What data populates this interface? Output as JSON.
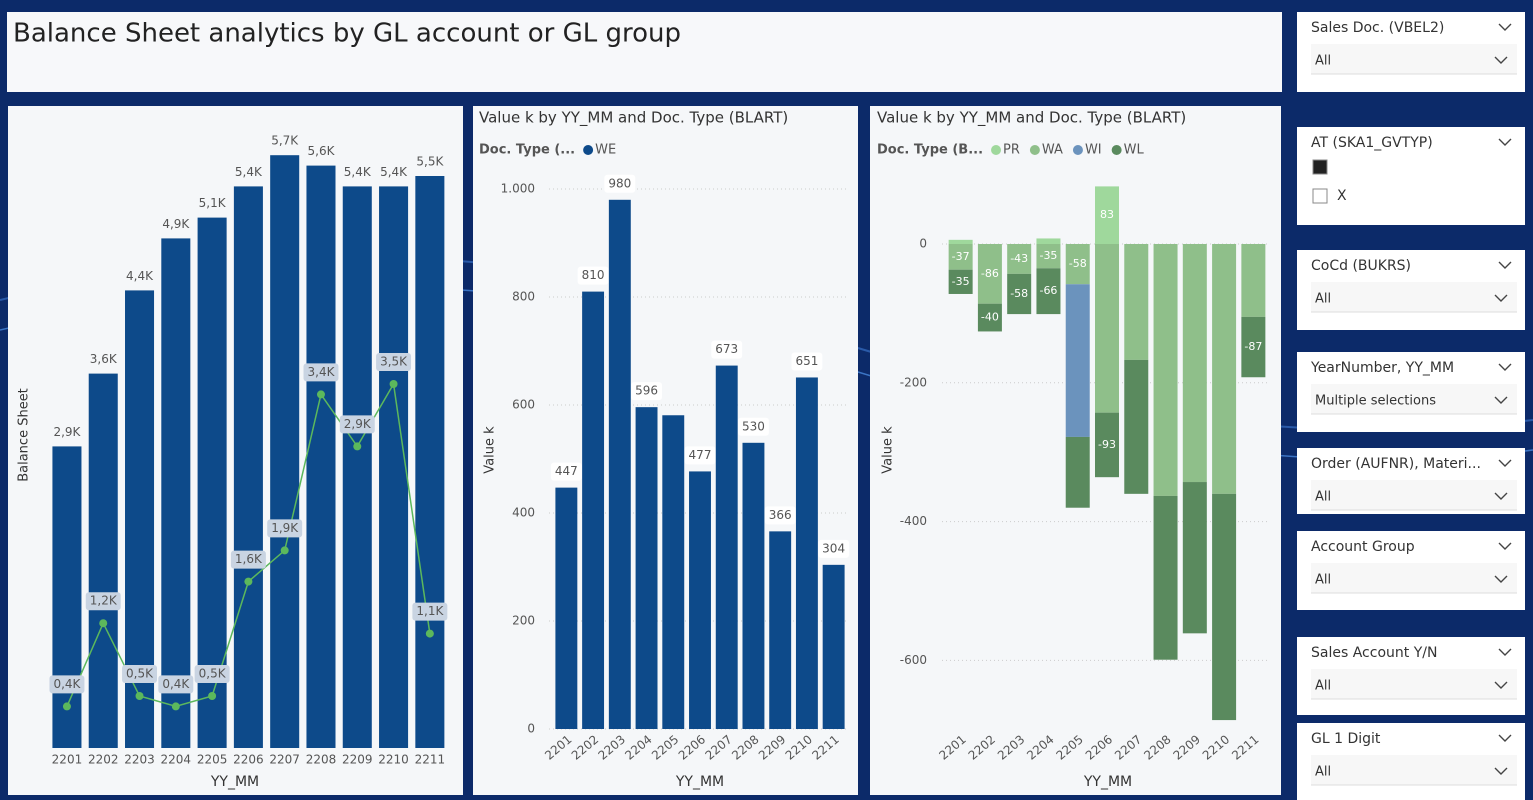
{
  "header": {
    "title": "Balance Sheet analytics by GL account or GL group"
  },
  "chart_data": [
    {
      "type": "combo",
      "y_label": "Balance Sheet",
      "x_label": "YY_MM",
      "ylim": [
        0,
        6
      ],
      "categories": [
        "2201",
        "2202",
        "2203",
        "2204",
        "2205",
        "2206",
        "2207",
        "2208",
        "2209",
        "2210",
        "2211"
      ],
      "series": [
        {
          "type": "bar",
          "color": "#0d4a8a",
          "values": [
            2.9,
            3.6,
            4.4,
            4.9,
            5.1,
            5.4,
            5.7,
            5.6,
            5.4,
            5.4,
            5.5
          ],
          "value_labels": [
            "2,9K",
            "3,6K",
            "4,4K",
            "4,9K",
            "5,1K",
            "5,4K",
            "5,7K",
            "5,6K",
            "5,4K",
            "5,4K",
            "5,5K"
          ]
        },
        {
          "type": "line",
          "color": "#5cb85c",
          "values": [
            0.4,
            1.2,
            0.5,
            0.4,
            0.5,
            1.6,
            1.9,
            3.4,
            2.9,
            3.5,
            1.1
          ],
          "value_labels": [
            "0,4K",
            "1,2K",
            "0,5K",
            "0,4K",
            "0,5K",
            "1,6K",
            "1,9K",
            "3,4K",
            "2,9K",
            "3,5K",
            "1,1K"
          ]
        }
      ]
    },
    {
      "type": "bar",
      "title": "Value k by YY_MM and Doc. Type (BLART)",
      "legend_title": "Doc. Type (...",
      "y_label": "Value k",
      "x_label": "YY_MM",
      "ylim": [
        0,
        1050
      ],
      "yticks": [
        0,
        200,
        400,
        600,
        800,
        {
          "value": 1000,
          "label": "1.000"
        }
      ],
      "grid": true,
      "categories": [
        "2201",
        "2202",
        "2203",
        "2204",
        "2205",
        "2206",
        "2207",
        "2208",
        "2209",
        "2210",
        "2211"
      ],
      "series": [
        {
          "name": "WE",
          "color": "#0d4a8a",
          "values": [
            447,
            810,
            980,
            596,
            581,
            477,
            673,
            530,
            366,
            651,
            304
          ],
          "value_labels": [
            "447",
            "810",
            "980",
            "596",
            null,
            "477",
            "673",
            "530",
            "366",
            "651",
            "304"
          ]
        }
      ]
    },
    {
      "type": "bar",
      "stacked": true,
      "title": "Value k by YY_MM and Doc. Type (BLART)",
      "legend_title": "Doc. Type (B...",
      "y_label": "Value k",
      "x_label": "YY_MM",
      "ylim": [
        -700,
        100
      ],
      "yticks": [
        0,
        -200,
        -400,
        -600
      ],
      "grid": true,
      "categories": [
        "2201",
        "2202",
        "2203",
        "2204",
        "2205",
        "2206",
        "2207",
        "2208",
        "2209",
        "2210",
        "2211"
      ],
      "series": [
        {
          "name": "PR",
          "color": "#9fd89c",
          "values": [
            6,
            null,
            null,
            8,
            null,
            83,
            null,
            null,
            null,
            null,
            null
          ],
          "value_labels": [
            null,
            null,
            null,
            null,
            null,
            "83",
            null,
            null,
            null,
            null,
            null
          ]
        },
        {
          "name": "WA",
          "color": "#8fbf8a",
          "values": [
            -37,
            -86,
            -43,
            -35,
            -58,
            -243,
            -167,
            -363,
            -343,
            -360,
            -105
          ],
          "value_labels": [
            "-37",
            "-86",
            "-43",
            "-35",
            "-58",
            null,
            null,
            null,
            null,
            null,
            null
          ]
        },
        {
          "name": "WI",
          "color": "#6b93bd",
          "values": [
            null,
            null,
            null,
            null,
            -220,
            null,
            null,
            null,
            null,
            null,
            null
          ],
          "value_labels": [
            null,
            null,
            null,
            null,
            null,
            null,
            null,
            null,
            null,
            null,
            null
          ]
        },
        {
          "name": "WL",
          "color": "#5a8a5e",
          "values": [
            -35,
            -40,
            -58,
            -66,
            -102,
            -93,
            -193,
            -236,
            -218,
            -326,
            -87
          ],
          "value_labels": [
            "-35",
            "-40",
            "-58",
            "-66",
            null,
            "-93",
            null,
            null,
            null,
            null,
            "-87"
          ]
        }
      ]
    }
  ],
  "slicers": [
    {
      "title": "Sales Doc. (VBEL2)",
      "value": "All"
    },
    {
      "title": "AT (SKA1_GVTYP)",
      "options": [
        {
          "checked": true
        },
        {
          "label": "X",
          "checked": false
        }
      ]
    },
    {
      "title": "CoCd (BUKRS)",
      "value": "All"
    },
    {
      "title": "YearNumber, YY_MM",
      "value": "Multiple selections"
    },
    {
      "title": "Order (AUFNR), Materi...",
      "value": "All"
    },
    {
      "title": "Account Group",
      "value": "All"
    },
    {
      "title": "Sales Account Y/N",
      "value": "All"
    },
    {
      "title": "GL 1 Digit",
      "value": "All"
    }
  ]
}
